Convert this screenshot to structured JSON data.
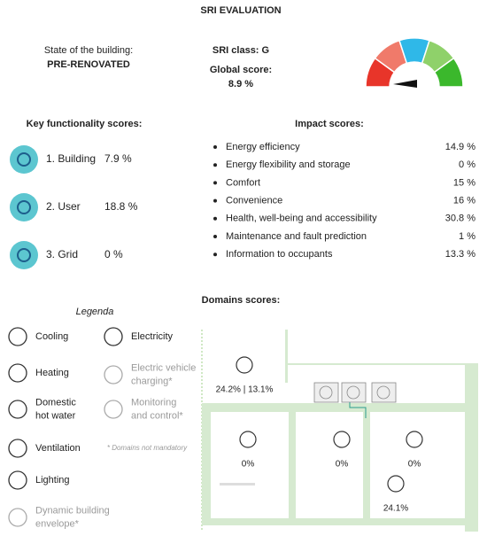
{
  "header": {
    "title": "SRI EVALUATION"
  },
  "state": {
    "label": "State of the building:",
    "value": "PRE-RENOVATED"
  },
  "sri": {
    "class": "SRI class: G",
    "global_label": "Global score:",
    "global_value": "8.9 %"
  },
  "key_functionality": {
    "title": "Key functionality scores:",
    "items": [
      {
        "label": "1. Building",
        "value": "7.9 %"
      },
      {
        "label": "2. User",
        "value": "18.8 %"
      },
      {
        "label": "3. Grid",
        "value": "0 %"
      }
    ]
  },
  "impact": {
    "title": "Impact scores:",
    "items": [
      {
        "label": "Energy efficiency",
        "value": "14.9 %"
      },
      {
        "label": "Energy flexibility and storage",
        "value": "0 %"
      },
      {
        "label": "Comfort",
        "value": "15 %"
      },
      {
        "label": "Convenience",
        "value": "16 %"
      },
      {
        "label": "Health, well-being and accessibility",
        "value": "30.8 %"
      },
      {
        "label": "Maintenance and fault prediction",
        "value": "1 %"
      },
      {
        "label": "Information to occupants",
        "value": "13.3 %"
      }
    ]
  },
  "domains": {
    "title": "Domains scores:",
    "legend_title": "Legenda",
    "legend": [
      {
        "lines": [
          "Cooling"
        ]
      },
      {
        "lines": [
          "Heating"
        ]
      },
      {
        "lines": [
          "Domestic",
          "hot water"
        ]
      },
      {
        "lines": [
          "Ventilation"
        ]
      },
      {
        "lines": [
          "Lighting"
        ]
      },
      {
        "lines": [
          "Dynamic  building",
          "envelope*"
        ]
      },
      {
        "lines": [
          "Electricity"
        ]
      },
      {
        "lines": [
          "Electric vehicle",
          "charging*"
        ]
      },
      {
        "lines": [
          "Monitoring",
          "and control*"
        ]
      }
    ],
    "note": "* Domains not mandatory",
    "diagram": [
      "24.2% | 13.1%",
      "0%",
      "0%",
      "0%",
      "24.1%"
    ]
  }
}
